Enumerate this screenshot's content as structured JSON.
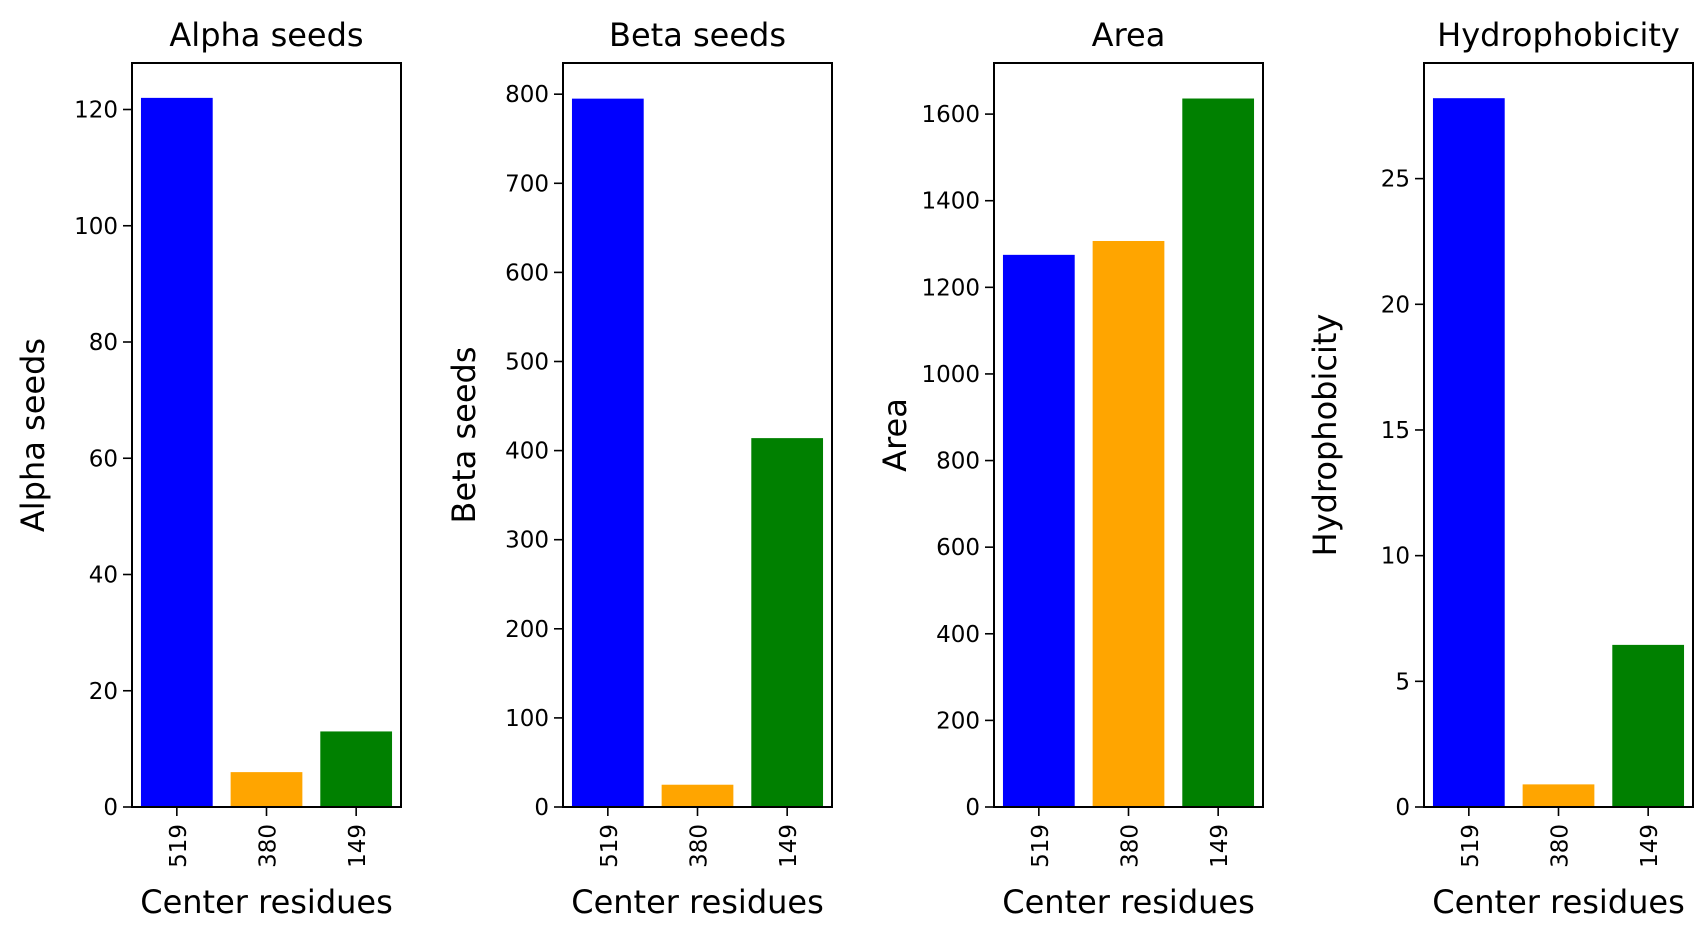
{
  "chart_data": [
    {
      "type": "bar",
      "title": "Alpha seeds",
      "xlabel": "Center residues",
      "ylabel": "Alpha seeds",
      "categories": [
        "519",
        "380",
        "149"
      ],
      "values": [
        122,
        6,
        13
      ],
      "colors": [
        "#0000ff",
        "#ffa500",
        "#008000"
      ],
      "ylim": [
        0,
        128
      ],
      "yticks": [
        0,
        20,
        40,
        60,
        80,
        100,
        120
      ],
      "grid": false
    },
    {
      "type": "bar",
      "title": "Beta seeds",
      "xlabel": "Center residues",
      "ylabel": "Beta seeds",
      "categories": [
        "519",
        "380",
        "149"
      ],
      "values": [
        795,
        25,
        414
      ],
      "colors": [
        "#0000ff",
        "#ffa500",
        "#008000"
      ],
      "ylim": [
        0,
        835
      ],
      "yticks": [
        0,
        100,
        200,
        300,
        400,
        500,
        600,
        700,
        800
      ],
      "grid": false
    },
    {
      "type": "bar",
      "title": "Area",
      "xlabel": "Center residues",
      "ylabel": "Area",
      "categories": [
        "519",
        "380",
        "149"
      ],
      "values": [
        1275,
        1307,
        1636
      ],
      "colors": [
        "#0000ff",
        "#ffa500",
        "#008000"
      ],
      "ylim": [
        0,
        1718
      ],
      "yticks": [
        0,
        200,
        400,
        600,
        800,
        1000,
        1200,
        1400,
        1600
      ],
      "grid": false
    },
    {
      "type": "bar",
      "title": "Hydrophobicity",
      "xlabel": "Center residues",
      "ylabel": "Hydrophobicity",
      "categories": [
        "519",
        "380",
        "149"
      ],
      "values": [
        28.2,
        0.9,
        6.45
      ],
      "colors": [
        "#0000ff",
        "#ffa500",
        "#008000"
      ],
      "ylim": [
        0,
        29.6
      ],
      "yticks": [
        0,
        5,
        10,
        15,
        20,
        25
      ],
      "grid": false
    }
  ]
}
